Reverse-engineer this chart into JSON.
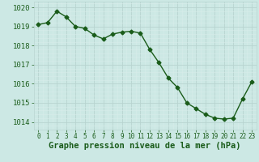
{
  "x": [
    0,
    1,
    2,
    3,
    4,
    5,
    6,
    7,
    8,
    9,
    10,
    11,
    12,
    13,
    14,
    15,
    16,
    17,
    18,
    19,
    20,
    21,
    22,
    23
  ],
  "y": [
    1019.1,
    1019.2,
    1019.8,
    1019.5,
    1019.0,
    1018.9,
    1018.55,
    1018.35,
    1018.6,
    1018.7,
    1018.75,
    1018.65,
    1017.8,
    1017.1,
    1016.3,
    1015.8,
    1015.0,
    1014.7,
    1014.4,
    1014.2,
    1014.15,
    1014.2,
    1015.2,
    1016.1
  ],
  "line_color": "#1a5c1a",
  "marker": "D",
  "marker_size": 2.5,
  "line_width": 1.0,
  "bg_color": "#cce8e4",
  "grid_color_major": "#b8d4d0",
  "grid_color_minor": "#d8ecea",
  "xlabel": "Graphe pression niveau de la mer (hPa)",
  "xlabel_fontsize": 7.5,
  "xlabel_color": "#1a5c1a",
  "ylim": [
    1013.6,
    1020.3
  ],
  "yticks": [
    1014,
    1015,
    1016,
    1017,
    1018,
    1019,
    1020
  ],
  "xticks": [
    0,
    1,
    2,
    3,
    4,
    5,
    6,
    7,
    8,
    9,
    10,
    11,
    12,
    13,
    14,
    15,
    16,
    17,
    18,
    19,
    20,
    21,
    22,
    23
  ],
  "ytick_fontsize": 6.5,
  "xtick_fontsize": 5.5,
  "tick_color": "#1a5c1a",
  "xlim": [
    -0.5,
    23.5
  ]
}
